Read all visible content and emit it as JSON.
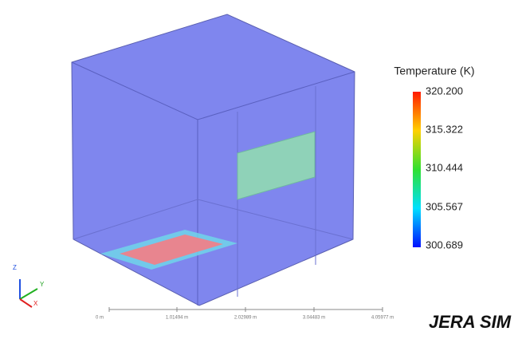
{
  "colorbar": {
    "title": "Temperature (K)",
    "ticks": [
      "320.200",
      "315.322",
      "310.444",
      "305.567",
      "300.689"
    ]
  },
  "scale_bar": {
    "labels": [
      "0 m",
      "1.01494 m",
      "2.02989 m",
      "3.04483 m",
      "4.05977 m"
    ]
  },
  "axes": {
    "z": "Z",
    "y": "Y",
    "x": "X"
  },
  "logo": "JERA SIM"
}
